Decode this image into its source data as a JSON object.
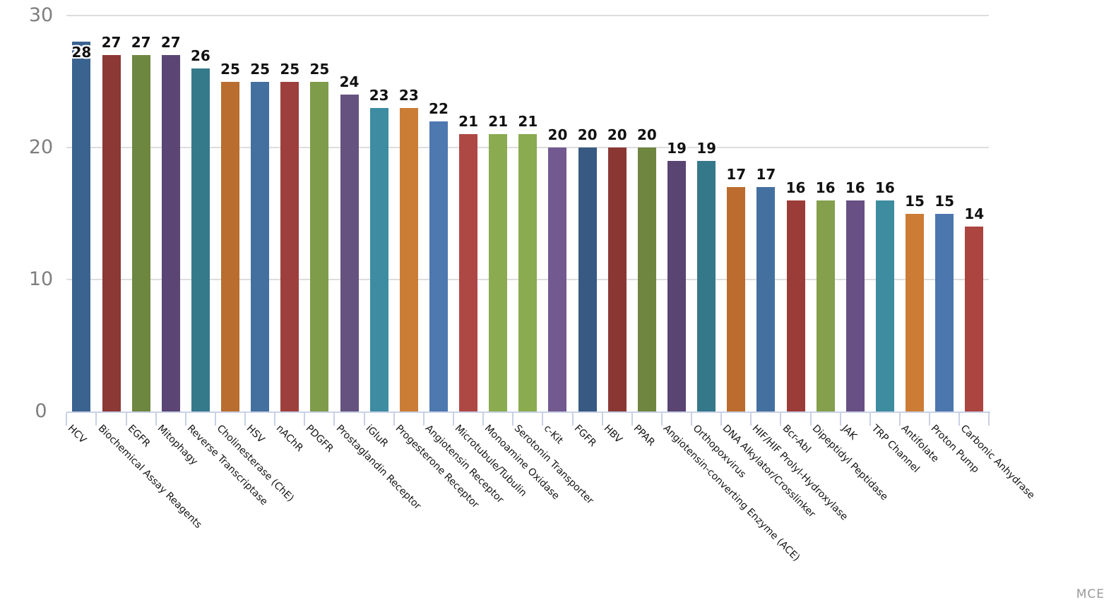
{
  "watermark": "MCE",
  "colors": {
    "background": "#ffffff",
    "gridline": "#dddddd",
    "axis_line": "#c9d1e6",
    "axis_tick": "#c9d1e6",
    "y_label_text": "#7e7e7e",
    "value_label_text": "#111111",
    "category_label_text": "#141414",
    "watermark_text": "#9a9a9a"
  },
  "chart_data": {
    "type": "bar",
    "title": "",
    "xlabel": "",
    "ylabel": "",
    "legend": "none",
    "grid": "horizontal gridlines at 10, 20, 30",
    "ylim": [
      0,
      30
    ],
    "yticks": [
      0,
      10,
      20,
      30
    ],
    "value_labels_shown": true,
    "categories": [
      "HCV",
      "Biochemical Assay Reagents",
      "EGFR",
      "Mitophagy",
      "Reverse Transcriptase",
      "Cholinesterase (ChE)",
      "HSV",
      "nAChR",
      "PDGFR",
      "Prostaglandin Receptor",
      "iGluR",
      "Progesterone Receptor",
      "Angiotensin Receptor",
      "Microtubule/Tubulin",
      "Monoamine Oxidase",
      "Serotonin Transporter",
      "c-Kit",
      "FGFR",
      "HBV",
      "PPAR",
      "Angiotensin-converting Enzyme (ACE)",
      "Orthopoxvirus",
      "DNA Alkylator/Crosslinker",
      "HIF/HIF Prolyl-Hydroxylase",
      "Bcr-Abl",
      "Dipeptidyl Peptidase",
      "JAK",
      "TRP Channel",
      "Antifolate",
      "Proton Pump",
      "Carbonic Anhydrase"
    ],
    "values": [
      28,
      27,
      27,
      27,
      26,
      25,
      25,
      25,
      25,
      24,
      23,
      23,
      22,
      21,
      21,
      21,
      20,
      20,
      20,
      20,
      19,
      19,
      17,
      17,
      16,
      16,
      16,
      16,
      15,
      15,
      14
    ],
    "bar_colors": [
      "#3a638f",
      "#8c3835",
      "#6e8740",
      "#5a4574",
      "#347a8b",
      "#b96d2e",
      "#43709f",
      "#9d403d",
      "#7e9c49",
      "#66527f",
      "#3d8ca1",
      "#cb7d36",
      "#4d78b0",
      "#ae4844",
      "#8aab50",
      "#8aab50",
      "#72598f",
      "#385a82",
      "#8a3734",
      "#6f8641",
      "#594472",
      "#35788a",
      "#bb6c2e",
      "#44709f",
      "#9c3c38",
      "#84a04c",
      "#685085",
      "#3e8ca0",
      "#cc7c35",
      "#4c77ae",
      "#ac4440"
    ]
  }
}
